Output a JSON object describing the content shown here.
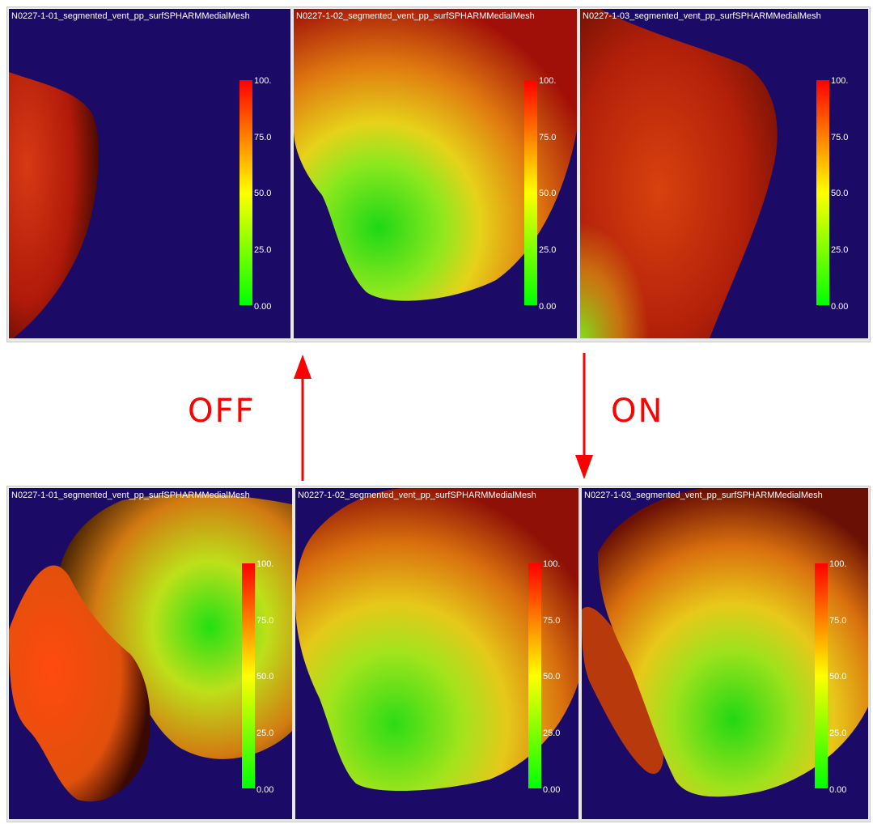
{
  "top_row": {
    "panels": [
      {
        "title": "N0227-1-01_segmented_vent_pp_surfSPHARMMedialMesh",
        "ticks": [
          "100.",
          "75.0",
          "50.0",
          "25.0",
          "0.00"
        ]
      },
      {
        "title": "N0227-1-02_segmented_vent_pp_surfSPHARMMedialMesh",
        "ticks": [
          "100.",
          "75.0",
          "50.0",
          "25.0",
          "0.00"
        ]
      },
      {
        "title": "N0227-1-03_segmented_vent_pp_surfSPHARMMedialMesh",
        "ticks": [
          "100.",
          "75.0",
          "50.0",
          "25.0",
          "0.00"
        ]
      }
    ]
  },
  "bottom_row": {
    "panels": [
      {
        "title": "N0227-1-01_segmented_vent_pp_surfSPHARMMedialMesh",
        "ticks": [
          "100.",
          "75.0",
          "50.0",
          "25.0",
          "0.00"
        ]
      },
      {
        "title": "N0227-1-02_segmented_vent_pp_surfSPHARMMedialMesh",
        "ticks": [
          "100.",
          "75.0",
          "50.0",
          "25.0",
          "0.00"
        ]
      },
      {
        "title": "N0227-1-03_segmented_vent_pp_surfSPHARMMedialMesh",
        "ticks": [
          "100.",
          "75.0",
          "50.0",
          "25.0",
          "0.00"
        ]
      }
    ]
  },
  "annotations": {
    "off_label": "OFF",
    "on_label": "ON",
    "arrow_color": "#ff0000"
  },
  "colors": {
    "viewport_background": "#1b0a66",
    "colormap_max": "#ff0000",
    "colormap_mid": "#ffff00",
    "colormap_min": "#00ff00"
  }
}
